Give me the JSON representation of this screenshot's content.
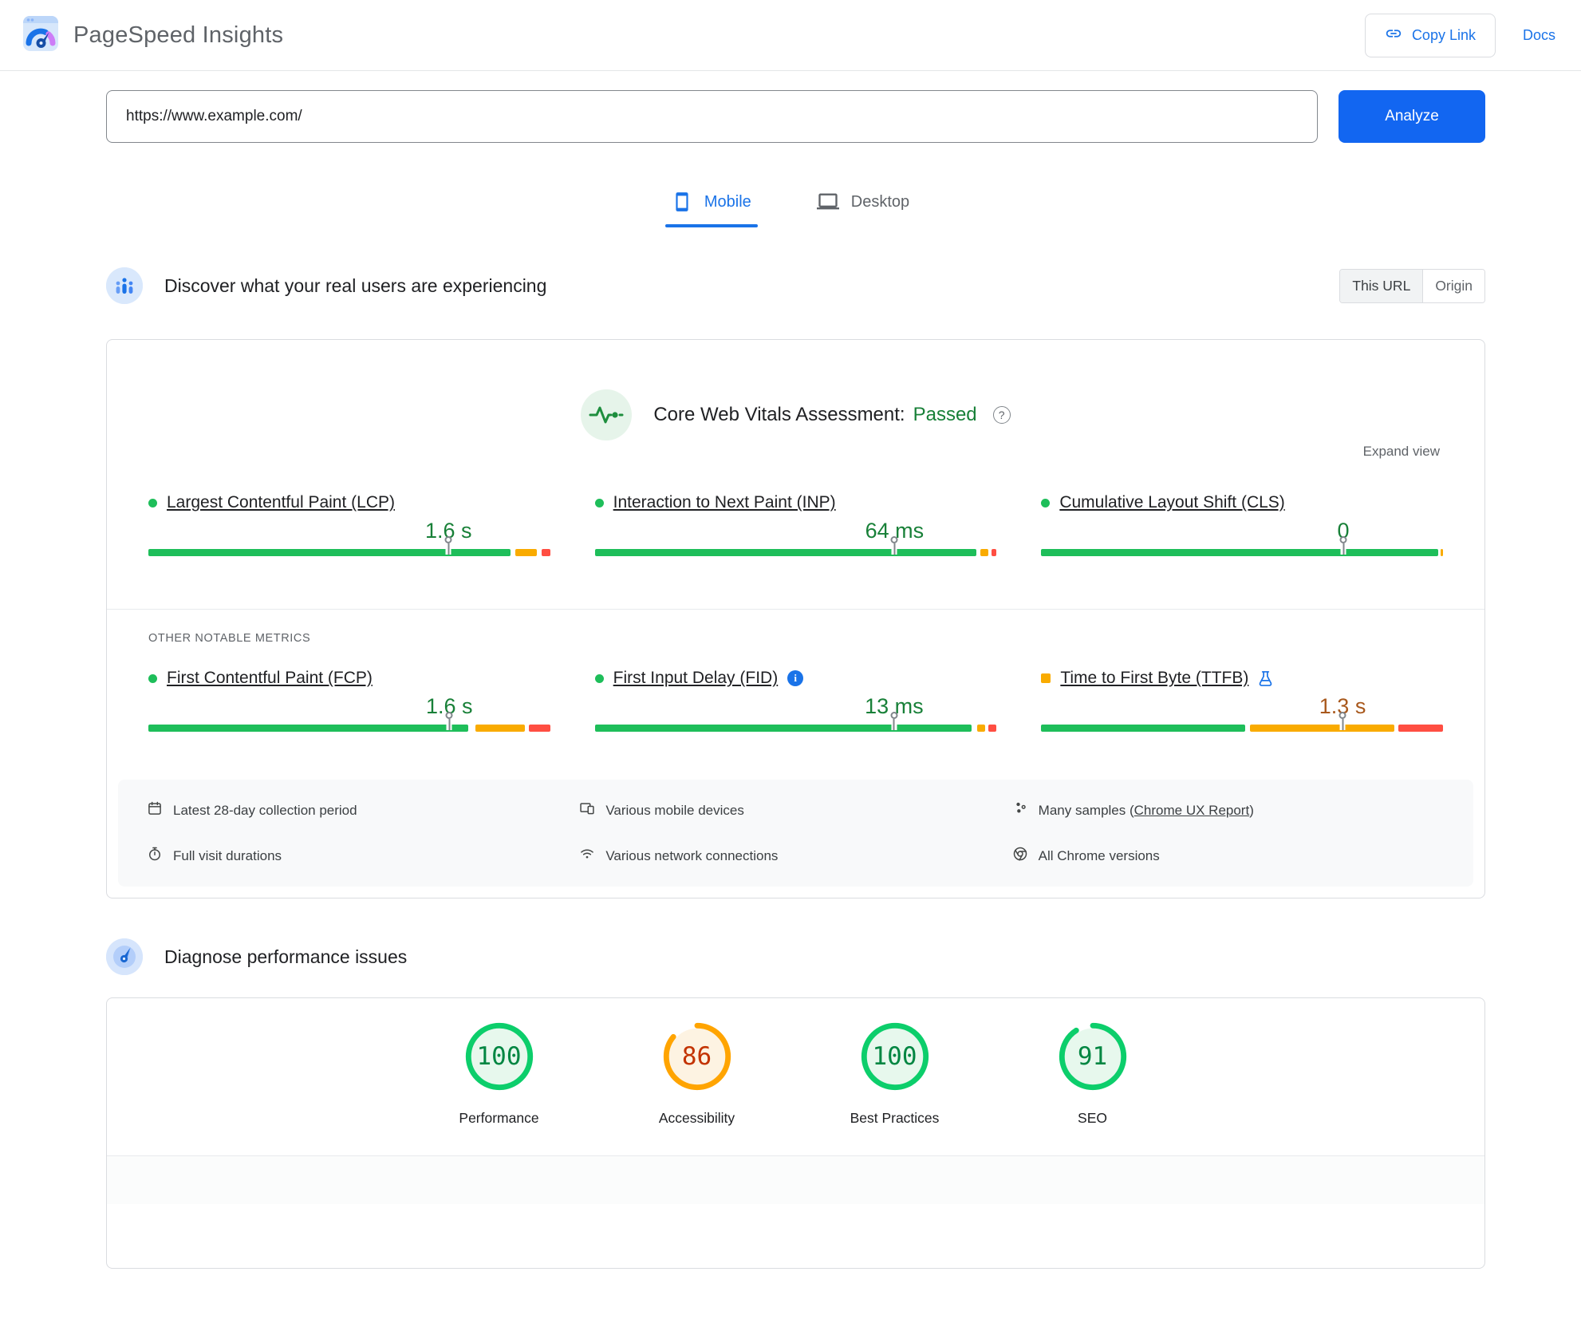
{
  "header": {
    "app_title": "PageSpeed Insights",
    "copy_link_label": "Copy Link",
    "docs_label": "Docs"
  },
  "url_bar": {
    "value": "https://www.example.com/",
    "analyze_label": "Analyze"
  },
  "tabs": [
    {
      "label": "Mobile",
      "active": true
    },
    {
      "label": "Desktop",
      "active": false
    }
  ],
  "field_section": {
    "title": "Discover what your real users are experiencing",
    "scope_toggle": {
      "options": [
        "This URL",
        "Origin"
      ],
      "selected": "This URL"
    },
    "assessment": {
      "label": "Core Web Vitals Assessment:",
      "result": "Passed"
    },
    "expand_label": "Expand view",
    "other_metrics_label": "OTHER NOTABLE METRICS",
    "core_metrics": [
      {
        "name": "Largest Contentful Paint (LCP)",
        "value": "1.6 s",
        "status": "good",
        "bullet": "dot-green",
        "marker_pct": 74.7,
        "segments": [
          {
            "color": "green",
            "start": 0,
            "end": 90.2
          },
          {
            "color": "orange",
            "start": 91.4,
            "end": 96.6
          },
          {
            "color": "red",
            "start": 97.8,
            "end": 100
          }
        ]
      },
      {
        "name": "Interaction to Next Paint (INP)",
        "value": "64 ms",
        "status": "good",
        "bullet": "dot-green",
        "marker_pct": 74.6,
        "segments": [
          {
            "color": "green",
            "start": 0,
            "end": 94.9
          },
          {
            "color": "orange",
            "start": 95.9,
            "end": 98.0
          },
          {
            "color": "red",
            "start": 98.8,
            "end": 100
          }
        ]
      },
      {
        "name": "Cumulative Layout Shift (CLS)",
        "value": "0",
        "status": "good",
        "bullet": "dot-green",
        "marker_pct": 75.2,
        "segments": [
          {
            "color": "green",
            "start": 0,
            "end": 98.8
          },
          {
            "color": "orange",
            "start": 99.4,
            "end": 100
          }
        ]
      }
    ],
    "other_metrics": [
      {
        "name": "First Contentful Paint (FCP)",
        "value": "1.6 s",
        "status": "good",
        "bullet": "dot-green",
        "marker_pct": 74.9,
        "segments": [
          {
            "color": "green",
            "start": 0,
            "end": 79.6
          },
          {
            "color": "orange",
            "start": 81.4,
            "end": 93.8
          },
          {
            "color": "red",
            "start": 94.8,
            "end": 100
          }
        ]
      },
      {
        "name": "First Input Delay (FID)",
        "value": "13 ms",
        "status": "good",
        "bullet": "dot-green",
        "info_icon": true,
        "marker_pct": 74.5,
        "segments": [
          {
            "color": "green",
            "start": 0,
            "end": 93.8
          },
          {
            "color": "orange",
            "start": 95.2,
            "end": 97.2
          },
          {
            "color": "red",
            "start": 98.0,
            "end": 100
          }
        ]
      },
      {
        "name": "Time to First Byte (TTFB)",
        "value": "1.3 s",
        "status": "moderate",
        "bullet": "square-orange",
        "flask_icon": true,
        "marker_pct": 75.0,
        "segments": [
          {
            "color": "green",
            "start": 0,
            "end": 50.7
          },
          {
            "color": "orange",
            "start": 51.9,
            "end": 87.9
          },
          {
            "color": "red",
            "start": 88.8,
            "end": 100
          }
        ]
      }
    ],
    "footnotes": [
      {
        "icon": "calendar-icon",
        "text": "Latest 28-day collection period"
      },
      {
        "icon": "devices-icon",
        "text": "Various mobile devices"
      },
      {
        "icon": "samples-icon",
        "prefix": "Many samples (",
        "link_text": "Chrome UX Report",
        "suffix": ")"
      },
      {
        "icon": "stopwatch-icon",
        "text": "Full visit durations"
      },
      {
        "icon": "network-icon",
        "text": "Various network connections"
      },
      {
        "icon": "chrome-icon",
        "text": "All Chrome versions"
      }
    ]
  },
  "lab_section": {
    "title": "Diagnose performance issues",
    "scores": [
      {
        "label": "Performance",
        "score": 100,
        "status": "good"
      },
      {
        "label": "Accessibility",
        "score": 86,
        "status": "average"
      },
      {
        "label": "Best Practices",
        "score": 100,
        "status": "good"
      },
      {
        "label": "SEO",
        "score": 91,
        "status": "good"
      }
    ]
  },
  "colors": {
    "green": "#1ebe5a",
    "orange": "#f9ab00",
    "red": "#ff4e42",
    "accent_blue": "#1a73e8",
    "pass_green": "#188038",
    "moderate": "#a8581c"
  }
}
